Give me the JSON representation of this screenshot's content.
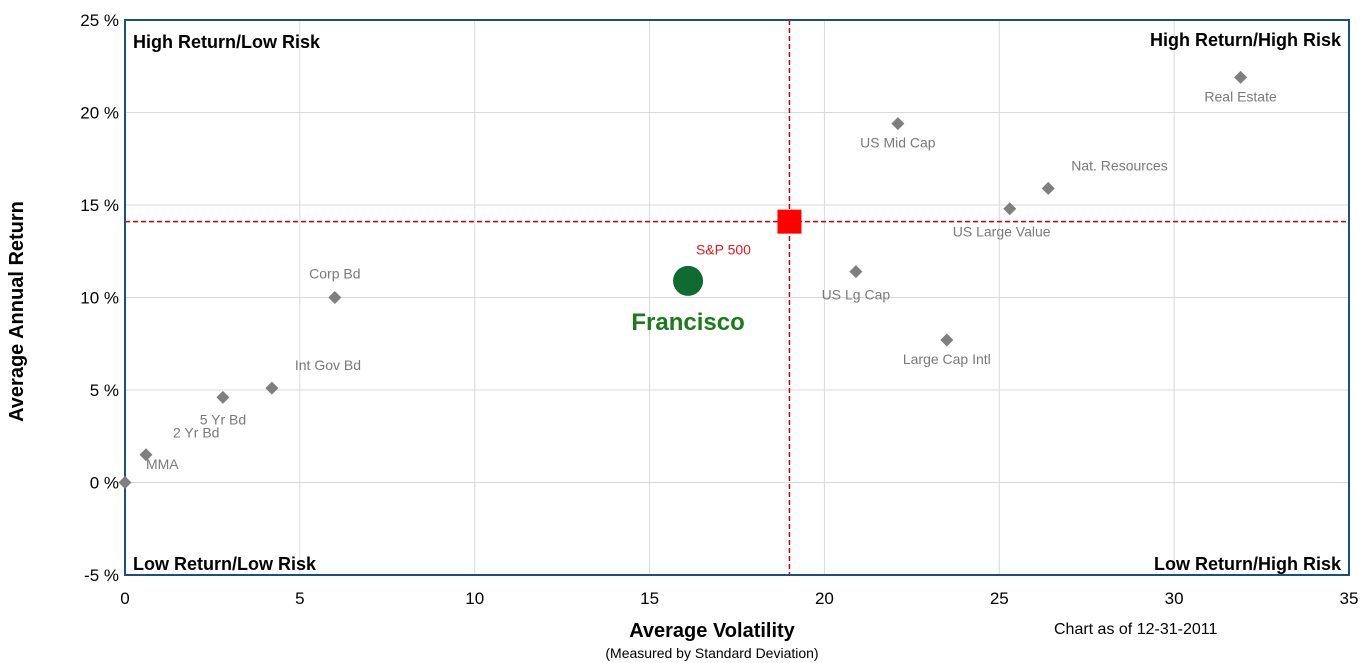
{
  "chart_data": {
    "type": "scatter",
    "xlim": [
      0,
      35
    ],
    "ylim": [
      -5,
      25
    ],
    "xticks": [
      0,
      5,
      10,
      15,
      20,
      25,
      30,
      35
    ],
    "yticks": [
      -5,
      0,
      5,
      10,
      15,
      20,
      25
    ],
    "ytick_suffix": " %",
    "grid": true,
    "xlabel": "Average Volatility",
    "xlabel_sub": "(Measured by Standard Deviation)",
    "ylabel": "Average Annual Return",
    "as_of": "Chart as of 12-31-2011",
    "quadrant_labels": {
      "top_left": "High Return/Low Risk",
      "top_right": "High Return/High Risk",
      "bottom_left": "Low Return/Low Risk",
      "bottom_right": "Low Return/High Risk"
    },
    "assets": [
      {
        "name": "MMA",
        "x": 0.6,
        "y": 1.5,
        "label_pos": "below-right"
      },
      {
        "name": "2 Yr Bd",
        "x": 0.0,
        "y": 0.0,
        "label_pos": "above-right"
      },
      {
        "name": "5 Yr Bd",
        "x": 2.8,
        "y": 4.6,
        "label_pos": "below"
      },
      {
        "name": "Int Gov Bd",
        "x": 4.2,
        "y": 5.1,
        "label_pos": "above-right"
      },
      {
        "name": "Corp Bd",
        "x": 6.0,
        "y": 10.0,
        "label_pos": "above"
      },
      {
        "name": "US Lg Cap",
        "x": 20.9,
        "y": 11.4,
        "label_pos": "below"
      },
      {
        "name": "Large Cap Intl",
        "x": 23.5,
        "y": 7.7,
        "label_pos": "below"
      },
      {
        "name": "US Mid Cap",
        "x": 22.1,
        "y": 19.4,
        "label_pos": "below"
      },
      {
        "name": "US Large Value",
        "x": 25.3,
        "y": 14.8,
        "label_pos": "below"
      },
      {
        "name": "Nat. Resources",
        "x": 26.4,
        "y": 15.9,
        "label_pos": "above-right"
      },
      {
        "name": "Real Estate",
        "x": 31.9,
        "y": 21.9,
        "label_pos": "below"
      }
    ],
    "benchmark": {
      "name": "S&P 500",
      "x": 19.0,
      "y": 14.1
    },
    "client": {
      "name": "Francisco",
      "x": 16.1,
      "y": 10.9
    },
    "colors": {
      "asset": "#7f7f7f",
      "benchmark": "#ff0000",
      "benchmark_line": "#d40000",
      "client": "#0f6b2f",
      "client_label": "#1b7a1b",
      "frame": "#1f4e79",
      "grid": "#d9d9d9"
    }
  }
}
